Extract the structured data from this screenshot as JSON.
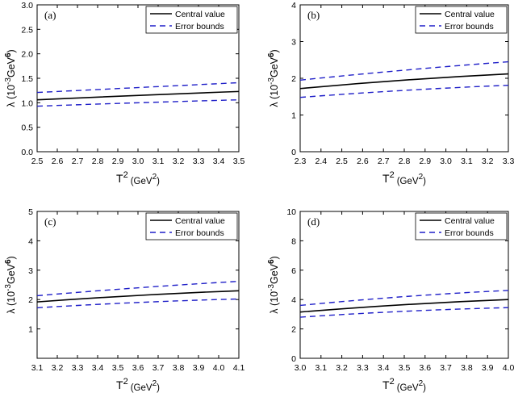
{
  "colors": {
    "central": "#000000",
    "bounds": "#1f1fc8",
    "axis": "#000000"
  },
  "chart_data": [
    {
      "type": "line",
      "panel_label": "(a)",
      "xlabel": "T",
      "xlabel_sup": "2",
      "xunit": "(GeV",
      "xunit_sup": "2",
      "xunit_close": ")",
      "ylabel": "λ (10",
      "ylabel_sup1": "-3",
      "ylabel_mid": "GeV",
      "ylabel_sup2": "6",
      "ylabel_close": ")",
      "xlim": [
        2.5,
        3.5
      ],
      "ylim": [
        0.0,
        3.0
      ],
      "xticks": [
        "2.5",
        "2.6",
        "2.7",
        "2.8",
        "2.9",
        "3.0",
        "3.1",
        "3.2",
        "3.3",
        "3.4",
        "3.5"
      ],
      "yticks": [
        "0.0",
        "0.5",
        "1.0",
        "1.5",
        "2.0",
        "2.5",
        "3.0"
      ],
      "legend": [
        "Central value",
        "Error bounds"
      ],
      "legend_position": "top-right",
      "x": [
        2.5,
        3.0,
        3.5
      ],
      "series": [
        {
          "name": "Central value",
          "style": "solid",
          "values": [
            1.06,
            1.15,
            1.23
          ]
        },
        {
          "name": "Error bounds",
          "style": "dashed",
          "values": [
            1.21,
            1.31,
            1.41
          ]
        },
        {
          "style": "dashed",
          "values": [
            0.93,
            1.0,
            1.06
          ]
        }
      ]
    },
    {
      "type": "line",
      "panel_label": "(b)",
      "xlabel": "T",
      "xlabel_sup": "2",
      "xunit": "(GeV",
      "xunit_sup": "2",
      "xunit_close": ")",
      "ylabel": "λ (10",
      "ylabel_sup1": "-3",
      "ylabel_mid": "GeV",
      "ylabel_sup2": "6",
      "ylabel_close": ")",
      "xlim": [
        2.3,
        3.3
      ],
      "ylim": [
        0,
        4
      ],
      "xticks": [
        "2.3",
        "2.4",
        "2.5",
        "2.6",
        "2.7",
        "2.8",
        "2.9",
        "3.0",
        "3.1",
        "3.2",
        "3.3"
      ],
      "yticks": [
        "0",
        "1",
        "2",
        "3",
        "4"
      ],
      "legend": [
        "Central value",
        "Error bounds"
      ],
      "legend_position": "top-right",
      "x": [
        2.3,
        2.8,
        3.3
      ],
      "series": [
        {
          "name": "Central value",
          "style": "solid",
          "values": [
            1.72,
            1.95,
            2.12
          ]
        },
        {
          "name": "Error bounds",
          "style": "dashed",
          "values": [
            1.95,
            2.22,
            2.45
          ]
        },
        {
          "style": "dashed",
          "values": [
            1.48,
            1.67,
            1.81
          ]
        }
      ]
    },
    {
      "type": "line",
      "panel_label": "(c)",
      "xlabel": "T",
      "xlabel_sup": "2",
      "xunit": "(GeV",
      "xunit_sup": "2",
      "xunit_close": ")",
      "ylabel": "λ (10",
      "ylabel_sup1": "-3",
      "ylabel_mid": "GeV",
      "ylabel_sup2": "6",
      "ylabel_close": ")",
      "xlim": [
        3.1,
        4.1
      ],
      "ylim": [
        0,
        5
      ],
      "xticks": [
        "3.1",
        "3.2",
        "3.3",
        "3.4",
        "3.5",
        "3.6",
        "3.7",
        "3.8",
        "3.9",
        "4.0",
        "4.1"
      ],
      "yticks": [
        "1",
        "2",
        "3",
        "4",
        "5"
      ],
      "legend": [
        "Central value",
        "Error bounds"
      ],
      "legend_position": "top-right",
      "x": [
        3.1,
        3.6,
        4.1
      ],
      "series": [
        {
          "name": "Central value",
          "style": "solid",
          "values": [
            1.92,
            2.14,
            2.3
          ]
        },
        {
          "name": "Error bounds",
          "style": "dashed",
          "values": [
            2.13,
            2.4,
            2.62
          ]
        },
        {
          "style": "dashed",
          "values": [
            1.72,
            1.9,
            2.02
          ]
        }
      ]
    },
    {
      "type": "line",
      "panel_label": "(d)",
      "xlabel": "T",
      "xlabel_sup": "2",
      "xunit": "(GeV",
      "xunit_sup": "2",
      "xunit_close": ")",
      "ylabel": "λ (10",
      "ylabel_sup1": "-3",
      "ylabel_mid": "GeV",
      "ylabel_sup2": "6",
      "ylabel_close": ")",
      "xlim": [
        3.0,
        4.0
      ],
      "ylim": [
        0,
        10
      ],
      "xticks": [
        "3.0",
        "3.1",
        "3.2",
        "3.3",
        "3.4",
        "3.5",
        "3.6",
        "3.7",
        "3.8",
        "3.9",
        "4.0"
      ],
      "yticks": [
        "0",
        "2",
        "4",
        "6",
        "8",
        "10"
      ],
      "legend": [
        "Central value",
        "Error bounds"
      ],
      "legend_position": "top-right",
      "x": [
        3.0,
        3.5,
        4.0
      ],
      "series": [
        {
          "name": "Central value",
          "style": "solid",
          "values": [
            3.15,
            3.65,
            4.0
          ]
        },
        {
          "name": "Error bounds",
          "style": "dashed",
          "values": [
            3.6,
            4.2,
            4.62
          ]
        },
        {
          "style": "dashed",
          "values": [
            2.8,
            3.2,
            3.45
          ]
        }
      ]
    }
  ]
}
